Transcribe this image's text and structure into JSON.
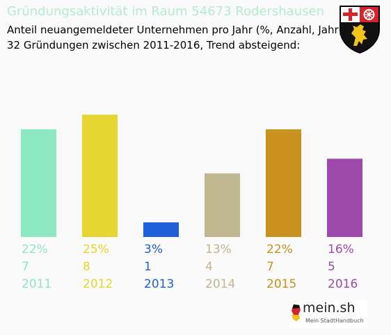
{
  "header": {
    "title": "Gründungsaktivität im Raum 54673 Rodershausen",
    "subtitle_line1": "Anteil neuangemeldeter Unternehmen pro Jahr (%, Anzahl, Jahr)",
    "subtitle_line2": "32 Gründungen zwischen 2011-2016, Trend absteigend:"
  },
  "brand": {
    "name": "mein.sh",
    "tagline": "Mein StadtHandbuch"
  },
  "chart_data": {
    "type": "bar",
    "categories": [
      "2011",
      "2012",
      "2013",
      "2014",
      "2015",
      "2016"
    ],
    "values": [
      22,
      25,
      3,
      13,
      22,
      16
    ],
    "counts": [
      7,
      8,
      1,
      4,
      7,
      5
    ],
    "percent_labels": [
      "22%",
      "25%",
      "3%",
      "13%",
      "22%",
      "16%"
    ],
    "colors": [
      "#8ee8c0",
      "#e6d631",
      "#1f5fd8",
      "#c0b68f",
      "#c8921c",
      "#9e4aac"
    ],
    "ylim": [
      0,
      25
    ],
    "grid": false,
    "title": "Gründungsaktivität im Raum 54673 Rodershausen"
  }
}
